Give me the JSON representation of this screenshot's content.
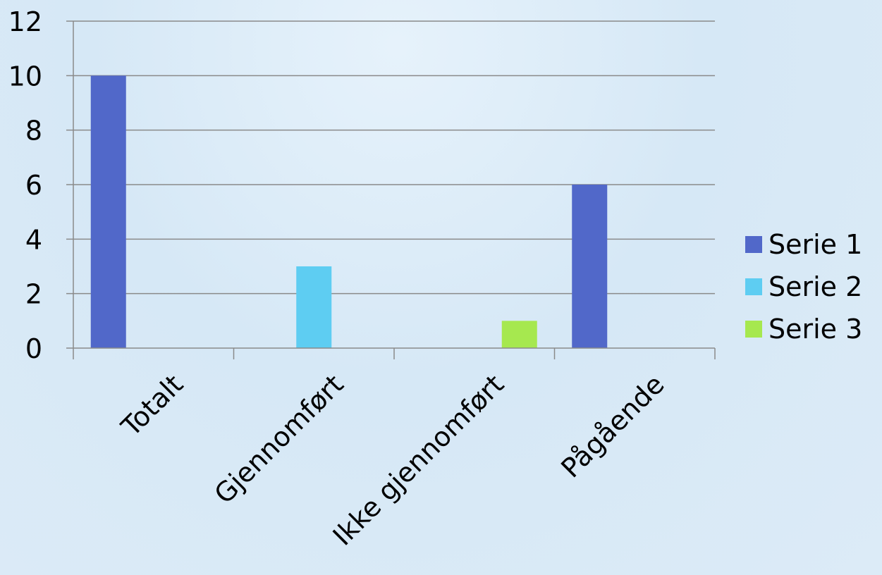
{
  "chart_data": {
    "type": "bar",
    "categories": [
      "Totalt",
      "Gjennomført",
      "Ikke gjennomført",
      "Pågående"
    ],
    "series": [
      {
        "name": "Serie 1",
        "color": "#5168c9",
        "values": [
          10,
          0,
          0,
          6
        ]
      },
      {
        "name": "Serie 2",
        "color": "#5ecdf2",
        "values": [
          0,
          3,
          0,
          0
        ]
      },
      {
        "name": "Serie 3",
        "color": "#a6e84f",
        "values": [
          0,
          0,
          1,
          0
        ]
      }
    ],
    "ylim": [
      0,
      12
    ],
    "yticks": [
      0,
      2,
      4,
      6,
      8,
      10,
      12
    ],
    "grid": true,
    "legend_position": "right",
    "title": "",
    "xlabel": "",
    "ylabel": ""
  }
}
